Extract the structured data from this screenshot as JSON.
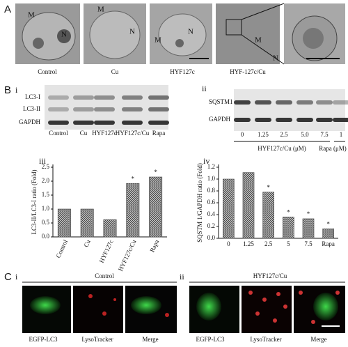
{
  "figure": {
    "panel_a": {
      "label": "A",
      "images": [
        {
          "caption": "Control",
          "labels": [
            "M",
            "N"
          ]
        },
        {
          "caption": "Cu",
          "labels": [
            "M",
            "N"
          ]
        },
        {
          "caption": "HYF127c",
          "labels": [
            "M",
            "N"
          ]
        },
        {
          "caption": "HYF-127c/Cu",
          "labels": [
            "M",
            "N"
          ]
        }
      ]
    },
    "panel_b": {
      "label": "B",
      "blot_i": {
        "label": "i",
        "rows": [
          "LC3-I",
          "LC3-II",
          "GAPDH"
        ],
        "lanes": [
          "Control",
          "Cu",
          "HYF127c",
          "HYF127c/Cu",
          "Rapa"
        ]
      },
      "blot_ii": {
        "label": "ii",
        "rows": [
          "SQSTM1",
          "GAPDH"
        ],
        "lanes": [
          "0",
          "1.25",
          "2.5",
          "5.0",
          "7.5",
          "1"
        ],
        "group_labels": [
          "HYF127c/Cu (μM)",
          "Rapa (μM)"
        ]
      }
    },
    "panel_c": {
      "label": "C",
      "sub_i": {
        "label": "i",
        "title": "Control",
        "captions": [
          "EGFP-LC3",
          "LysoTracker",
          "Merge"
        ]
      },
      "sub_ii": {
        "label": "ii",
        "title": "HYF127c/Cu",
        "captions": [
          "EGFP-LC3",
          "LysoTracker",
          "Merge"
        ]
      }
    }
  },
  "chart_data": [
    {
      "type": "bar",
      "panel": "iii",
      "ylabel": "LC3-II/LC3-I ratio (Fold)",
      "categories": [
        "Control",
        "Cu",
        "HYF127c",
        "HYF127c/Cu",
        "Rapa"
      ],
      "values": [
        1.0,
        1.0,
        0.62,
        1.92,
        2.15
      ],
      "significance": [
        null,
        null,
        null,
        "*",
        "*"
      ],
      "color": "#444444",
      "ylim": [
        0,
        2.5
      ],
      "yticks": [
        {
          "value": 0,
          "label": "0.0"
        },
        0.5,
        {
          "value": 1,
          "label": "1.0"
        },
        1.5,
        {
          "value": 2,
          "label": "2.0"
        },
        2.5
      ],
      "xlabel_rotated": true
    },
    {
      "type": "bar",
      "panel": "iv",
      "ylabel": "SQSTM 1/GAPDH ratio (Fold)",
      "categories": [
        "0",
        "1.25",
        "2.5",
        "5",
        "7.5",
        "Rapa"
      ],
      "values": [
        1.0,
        1.11,
        0.78,
        0.36,
        0.33,
        0.16
      ],
      "significance": [
        null,
        null,
        "*",
        "*",
        "*",
        "*"
      ],
      "color": "#444444",
      "ylim": [
        0,
        1.2
      ],
      "yticks": [
        {
          "value": 0,
          "label": "0.0"
        },
        0.2,
        0.4,
        0.6,
        0.8,
        {
          "value": 1,
          "label": "1.0"
        },
        1.2
      ],
      "xlabel_rotated": false
    }
  ]
}
